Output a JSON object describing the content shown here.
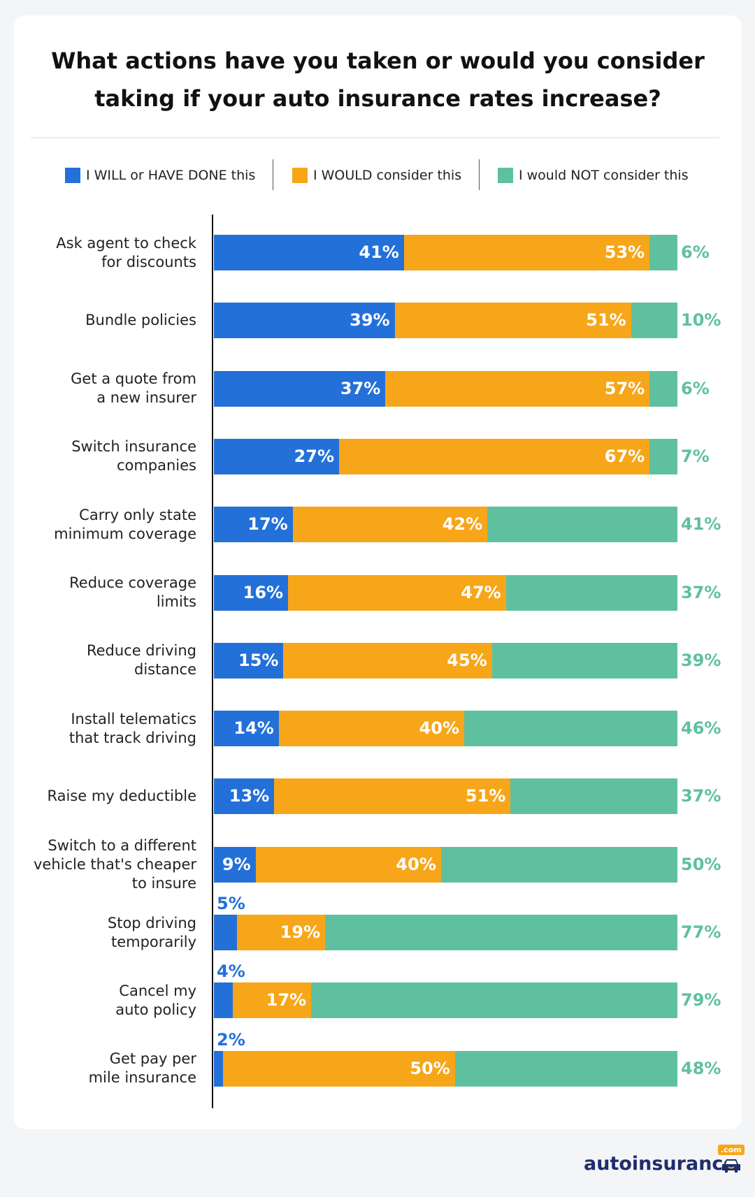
{
  "chart_data": {
    "type": "bar",
    "orientation": "horizontal",
    "stacked": true,
    "title": "What actions have you taken or would you consider taking if your auto insurance rates increase?",
    "title_lines": [
      "What actions have you taken or would you consider",
      "taking if your auto insurance rates increase?"
    ],
    "legend_placement": "top",
    "grid": false,
    "xlim": [
      0,
      100
    ],
    "categories": [
      [
        "Ask agent to check",
        "for discounts"
      ],
      [
        "Bundle policies"
      ],
      [
        "Get a quote from",
        "a new insurer"
      ],
      [
        "Switch insurance",
        "companies"
      ],
      [
        "Carry only state",
        "minimum coverage"
      ],
      [
        "Reduce coverage",
        "limits"
      ],
      [
        "Reduce driving",
        "distance"
      ],
      [
        "Install telematics",
        "that track driving"
      ],
      [
        "Raise my deductible"
      ],
      [
        "Switch to a different",
        "vehicle that's cheaper",
        "to insure"
      ],
      [
        "Stop driving",
        "temporarily"
      ],
      [
        "Cancel my",
        "auto policy"
      ],
      [
        "Get pay per",
        "mile insurance"
      ]
    ],
    "series": [
      {
        "name": "I WILL or HAVE DONE this",
        "color": "#2370d9",
        "values": [
          41,
          39,
          37,
          27,
          17,
          16,
          15,
          14,
          13,
          9,
          5,
          4,
          2
        ]
      },
      {
        "name": "I WOULD consider this",
        "color": "#f7a619",
        "values": [
          53,
          51,
          57,
          67,
          42,
          47,
          45,
          40,
          51,
          40,
          19,
          17,
          50
        ]
      },
      {
        "name": "I would NOT consider this",
        "color": "#5fc0a0",
        "values": [
          6,
          10,
          6,
          7,
          41,
          37,
          39,
          46,
          37,
          50,
          77,
          79,
          48
        ]
      }
    ],
    "value_suffix": "%"
  },
  "logo": {
    "text": "autoinsurance",
    "badge": ".com"
  }
}
